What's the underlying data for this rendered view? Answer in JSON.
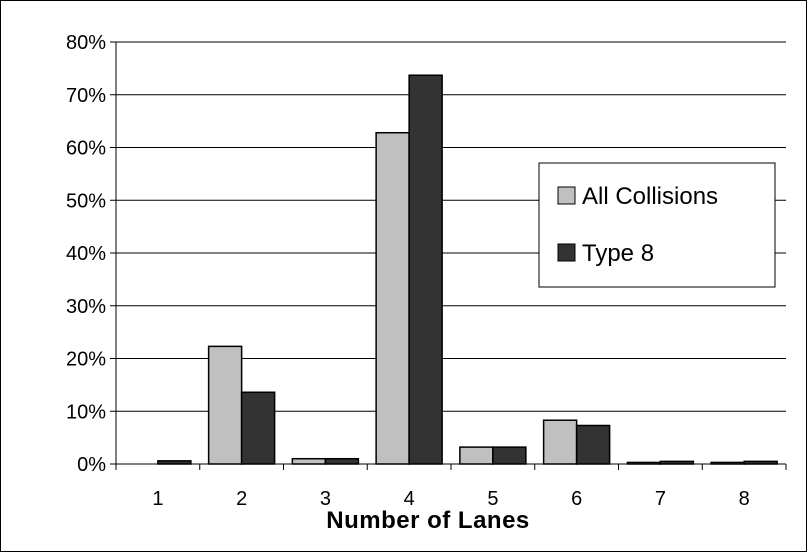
{
  "chart_data": {
    "type": "bar",
    "title": "",
    "xlabel": "Number of Lanes",
    "ylabel": "",
    "categories": [
      "1",
      "2",
      "3",
      "4",
      "5",
      "6",
      "7",
      "8"
    ],
    "series": [
      {
        "name": "All Collisions",
        "values": [
          0,
          22.3,
          1.0,
          62.8,
          3.2,
          8.3,
          0.3,
          0.3
        ],
        "color": "#c0c0c0"
      },
      {
        "name": "Type 8",
        "values": [
          0.6,
          13.6,
          1.0,
          73.7,
          3.2,
          7.3,
          0.5,
          0.5
        ],
        "color": "#333333"
      }
    ],
    "ylim": [
      0,
      80
    ],
    "yticks": [
      "0%",
      "10%",
      "20%",
      "30%",
      "40%",
      "50%",
      "60%",
      "70%",
      "80%"
    ],
    "grid": true,
    "legend_position": "right"
  }
}
